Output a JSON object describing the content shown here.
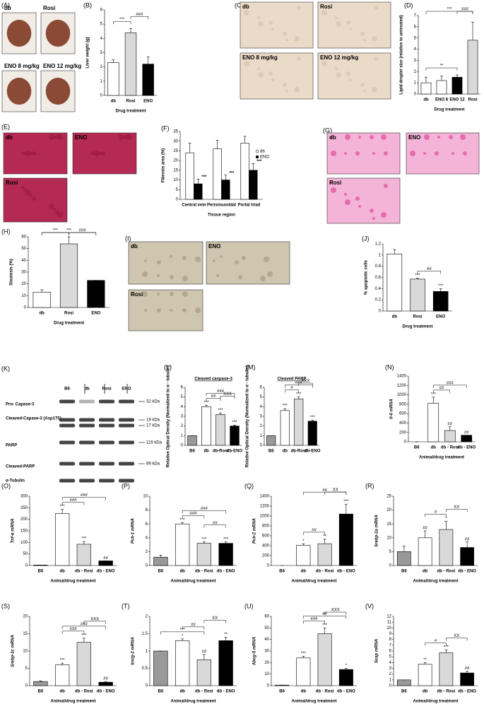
{
  "chart_data": [
    {
      "type": "bar",
      "panel": "(B)",
      "ylabel": "Liver weight (g)",
      "xlabel": "Drug treatment",
      "categories": [
        "db",
        "Rosi",
        "ENO"
      ],
      "colors": [
        "#ffffff",
        "#d9d9d9",
        "#000000"
      ],
      "values": [
        2.3,
        4.4,
        2.2
      ],
      "errors": [
        0.2,
        0.3,
        0.5
      ],
      "brackets": [
        "***",
        "###"
      ],
      "ylim": [
        0,
        6
      ],
      "yticks": [
        0,
        1,
        2,
        3,
        4,
        5,
        6
      ]
    },
    {
      "type": "bar",
      "panel": "(D)",
      "ylabel": "Lipid droplet size (relative to untreated)",
      "xlabel": "Drug treatment",
      "categories": [
        "db",
        "ENO 8",
        "ENO 12",
        "Rosi"
      ],
      "colors": [
        "#ffffff",
        "#ffffff",
        "#000000",
        "#d9d9d9"
      ],
      "values": [
        1,
        1.2,
        1.5,
        4.8
      ],
      "errors": [
        0.5,
        0.4,
        0.2,
        1.6
      ],
      "brackets": [
        "**",
        "***",
        "###"
      ],
      "ylim": [
        0,
        7
      ],
      "yticks": [
        0,
        1,
        2,
        3,
        4,
        5,
        6,
        7
      ]
    },
    {
      "type": "grouped_bar",
      "panel": "(F)",
      "ylabel": "Fibrosis area (%)",
      "xlabel": "Tissue region",
      "categories": [
        "Central vein",
        "Perisinusoidal",
        "Portal triad"
      ],
      "series": [
        {
          "name": "db",
          "color": "#ffffff",
          "values": [
            24,
            26,
            29
          ],
          "errors": [
            5,
            4.5,
            3.5
          ]
        },
        {
          "name": "ENO",
          "color": "#000000",
          "values": [
            8,
            10,
            15
          ],
          "errors": [
            2.5,
            2.5,
            3.5
          ],
          "marks": [
            "***",
            "***",
            "***"
          ]
        }
      ],
      "ylim": [
        0,
        35
      ],
      "yticks": [
        0,
        5,
        10,
        15,
        20,
        25,
        30,
        35
      ],
      "legend": "upper right"
    },
    {
      "type": "bar",
      "panel": "(H)",
      "ylabel": "Steatosis (%)",
      "xlabel": "Drug treatment",
      "categories": [
        "db",
        "Rosi",
        "ENO"
      ],
      "colors": [
        "#ffffff",
        "#d9d9d9",
        "#000000"
      ],
      "values": [
        13,
        54,
        23
      ],
      "errors": [
        2,
        6,
        0
      ],
      "brackets": [
        "***",
        "***",
        "###"
      ],
      "ylim": [
        0,
        60
      ],
      "yticks": [
        0,
        10,
        20,
        30,
        40,
        50,
        60
      ]
    },
    {
      "type": "bar",
      "panel": "(J)",
      "ylabel": "% apoptotic cells",
      "xlabel": "Drug treatment",
      "categories": [
        "db",
        "Rosi",
        "ENO"
      ],
      "colors": [
        "#ffffff",
        "#d9d9d9",
        "#000000"
      ],
      "values": [
        1.02,
        0.57,
        0.35
      ],
      "errors": [
        0.08,
        0.02,
        0.05
      ],
      "bar_marks": [
        null,
        "***",
        "***"
      ],
      "brackets": [
        "##"
      ],
      "ylim": [
        0,
        1.2
      ],
      "yticks": [
        0,
        0.2,
        0.4,
        0.6,
        0.8,
        1,
        1.2
      ]
    },
    {
      "type": "bar",
      "panel": "(L)",
      "title": "Cleaved caspase-3",
      "ylabel": "Relative Optical Density (Normalized to α - tubulin)",
      "categories": [
        "B6",
        "db",
        "db-Rosi",
        "db-ENO"
      ],
      "colors": [
        "#999999",
        "#ffffff",
        "#d9d9d9",
        "#000000"
      ],
      "values": [
        1,
        4,
        3.2,
        2
      ],
      "errors": [
        0,
        0.15,
        0.15,
        0.1
      ],
      "bar_marks": [
        null,
        "***",
        "***",
        "***"
      ],
      "brackets": [
        "##",
        "###",
        "XXX"
      ],
      "ylim": [
        0,
        6
      ],
      "yticks": [
        0,
        1,
        2,
        3,
        4,
        5,
        6
      ]
    },
    {
      "type": "bar",
      "panel": "(M)",
      "title": "Cleaved PARP",
      "ylabel": "Relative Optical Density (Normalized to α - tubulin)",
      "categories": [
        "B6",
        "db",
        "db-Rosi",
        "db-ENO"
      ],
      "colors": [
        "#999999",
        "#ffffff",
        "#d9d9d9",
        "#000000"
      ],
      "values": [
        1,
        3.6,
        4.8,
        2.5
      ],
      "errors": [
        0,
        0.2,
        0.2,
        0.1
      ],
      "bar_marks": [
        null,
        "***",
        "***",
        "***"
      ],
      "brackets": [
        "#",
        "###",
        "XXX"
      ],
      "ylim": [
        0,
        6
      ],
      "yticks": [
        0,
        1,
        2,
        3,
        4,
        5,
        6
      ]
    },
    {
      "type": "bar",
      "panel": "(N)",
      "ylabel": "Il-6 mRNA",
      "xlabel": "Animal/drug treatment",
      "categories": [
        "B6",
        "db",
        "db - Rosi",
        "db - ENO"
      ],
      "colors": [
        "#999999",
        "#ffffff",
        "#d9d9d9",
        "#000000"
      ],
      "values": [
        0,
        820,
        240,
        140
      ],
      "errors": [
        0,
        130,
        80,
        0
      ],
      "bar_marks": [
        null,
        "***",
        "##",
        "##"
      ],
      "brackets": [
        "##",
        "###"
      ],
      "ylim": [
        0,
        1400
      ],
      "yticks": [
        0,
        200,
        400,
        600,
        800,
        1000,
        1200,
        1400
      ]
    },
    {
      "type": "bar",
      "panel": "(O)",
      "ylabel": "Tnf-α mRNA",
      "xlabel": "Animal/drug treatment",
      "categories": [
        "B6",
        "db",
        "db - Rosi",
        "db - ENO"
      ],
      "colors": [
        "#999999",
        "#ffffff",
        "#d9d9d9",
        "#000000"
      ],
      "values": [
        2,
        225,
        92,
        20
      ],
      "errors": [
        0,
        18,
        12,
        0
      ],
      "bar_marks": [
        null,
        "***",
        "***",
        "##"
      ],
      "brackets": [
        "###",
        "###"
      ],
      "ylim": [
        0,
        300
      ],
      "yticks": [
        0,
        50,
        100,
        150,
        200,
        250,
        300
      ]
    },
    {
      "type": "bar",
      "panel": "(P)",
      "ylabel": "Pck-1 mRNA",
      "xlabel": "Animal/drug treatment",
      "categories": [
        "B6",
        "db",
        "db - Rosi",
        "db - ENO"
      ],
      "colors": [
        "#999999",
        "#ffffff",
        "#d9d9d9",
        "#000000"
      ],
      "values": [
        1.2,
        6,
        3.2,
        3.2
      ],
      "errors": [
        0.3,
        0.2,
        0.2,
        0.2
      ],
      "bar_marks": [
        null,
        "***",
        "***",
        "***"
      ],
      "brackets": [
        "###",
        "###",
        "##"
      ],
      "ylim": [
        0,
        10
      ],
      "yticks": [
        0,
        2,
        4,
        6,
        8,
        10
      ]
    },
    {
      "type": "bar",
      "panel": "(Q)",
      "ylabel": "Pck-2 mRNA",
      "xlabel": "Animal/drug treatment",
      "categories": [
        "B6",
        "db",
        "db - Rosi",
        "db - ENO"
      ],
      "colors": [
        "#999999",
        "#ffffff",
        "#d9d9d9",
        "#000000"
      ],
      "values": [
        0,
        410,
        440,
        1040
      ],
      "errors": [
        0,
        30,
        90,
        200
      ],
      "bar_marks": [
        null,
        "*",
        "**",
        "***"
      ],
      "brackets": [
        "##",
        "##",
        "XX"
      ],
      "ylim": [
        0,
        1400
      ],
      "yticks": [
        0,
        200,
        400,
        600,
        800,
        1000,
        1200,
        1400
      ]
    },
    {
      "type": "bar",
      "panel": "(R)",
      "ylabel": "Srebp-1a mRNA",
      "xlabel": "Animal/drug treatment",
      "categories": [
        "B6",
        "db",
        "db - Rosi",
        "db - ENO"
      ],
      "colors": [
        "#999999",
        "#ffffff",
        "#d9d9d9",
        "#000000"
      ],
      "values": [
        5,
        10,
        13,
        6.5
      ],
      "errors": [
        2,
        2.5,
        3,
        2
      ],
      "bar_marks": [
        null,
        "##",
        "*",
        "##"
      ],
      "brackets": [
        "#",
        "XX"
      ],
      "ylim": [
        0,
        25
      ],
      "yticks": [
        0,
        5,
        10,
        15,
        20,
        25
      ]
    },
    {
      "type": "bar",
      "panel": "(S)",
      "ylabel": "Srebp-1c mRNA",
      "xlabel": "Animal/drug treatment",
      "categories": [
        "B6",
        "db",
        "db - Rosi",
        "db - ENO"
      ],
      "colors": [
        "#999999",
        "#ffffff",
        "#d9d9d9",
        "#000000"
      ],
      "values": [
        1.2,
        6,
        12.5,
        1
      ],
      "errors": [
        0.2,
        0.5,
        1.2,
        0.2
      ],
      "bar_marks": [
        null,
        "***",
        "***",
        "##"
      ],
      "brackets": [
        "###",
        "###",
        "XXX"
      ],
      "ylim": [
        0,
        20
      ],
      "yticks": [
        0,
        5,
        10,
        15,
        20
      ]
    },
    {
      "type": "bar",
      "panel": "(T)",
      "ylabel": "Insig-2 mRNA",
      "xlabel": "Animal/drug treatment",
      "categories": [
        "B6",
        "db",
        "db - Rosi",
        "db - ENO"
      ],
      "colors": [
        "#999999",
        "#ffffff",
        "#d9d9d9",
        "#000000"
      ],
      "values": [
        1,
        1.3,
        0.75,
        1.3
      ],
      "errors": [
        0,
        0.05,
        0.15,
        0.1
      ],
      "bar_marks": [
        null,
        "*",
        "##",
        "**"
      ],
      "brackets": [
        "***",
        "##",
        "XX"
      ],
      "ylim": [
        0,
        2
      ],
      "yticks": [
        0,
        0.5,
        1,
        1.5,
        2
      ]
    },
    {
      "type": "bar",
      "panel": "(U)",
      "ylabel": "Abcg-5 mRNA",
      "xlabel": "Animal/drug treatment",
      "categories": [
        "B6",
        "db",
        "db - Rosi",
        "db - ENO"
      ],
      "colors": [
        "#999999",
        "#ffffff",
        "#d9d9d9",
        "#000000"
      ],
      "values": [
        0.5,
        24,
        45,
        14
      ],
      "errors": [
        0,
        1.5,
        5,
        1
      ],
      "bar_marks": [
        null,
        "***",
        "***",
        "*"
      ],
      "brackets": [
        "###",
        "##",
        "XXX"
      ],
      "ylim": [
        0,
        60
      ],
      "yticks": [
        0,
        10,
        20,
        30,
        40,
        50,
        60
      ]
    },
    {
      "type": "bar",
      "panel": "(V)",
      "ylabel": "Scap mRNA",
      "xlabel": "Animal/drug treatment",
      "categories": [
        "B6",
        "db",
        "db - Rosi",
        "db - ENO"
      ],
      "colors": [
        "#999999",
        "#ffffff",
        "#d9d9d9",
        "#000000"
      ],
      "values": [
        1,
        3.7,
        5.7,
        2.2
      ],
      "errors": [
        0,
        0.3,
        0.5,
        0.3
      ],
      "bar_marks": [
        null,
        "**",
        "***",
        "##"
      ],
      "brackets": [
        "#",
        "XX"
      ],
      "ylim": [
        0,
        12
      ],
      "yticks": [
        0,
        1,
        2,
        3,
        4,
        5,
        6,
        7,
        8,
        9,
        10,
        11,
        12
      ]
    }
  ],
  "images": [
    {
      "panel": "(A)",
      "labels": [
        "db",
        "Rosi",
        "ENO 8 mg/kg",
        "ENO 12 mg/kg"
      ]
    },
    {
      "panel": "(C)",
      "labels": [
        "db",
        "Rosi",
        "ENO 8 mg/kg",
        "ENO 12 mg/kg"
      ]
    },
    {
      "panel": "(E)",
      "labels": [
        "db",
        "ENO",
        "Rosi"
      ]
    },
    {
      "panel": "(G)",
      "labels": [
        "db",
        "ENO",
        "Rosi"
      ]
    },
    {
      "panel": "(I)",
      "labels": [
        "db",
        "ENO",
        "Rosi"
      ]
    }
  ],
  "blot": {
    "panel": "(K)",
    "lanes": [
      "B6",
      "db",
      "Rosi",
      "ENO"
    ],
    "bands": [
      {
        "name": "Pro- Capase-3",
        "sizes": [
          "32 kDa"
        ]
      },
      {
        "name": "Cleaved-Capase-3 (Asp175)",
        "sizes": [
          "19 kDa",
          "17 kDa"
        ]
      },
      {
        "name": "PARP",
        "sizes": [
          "116 kDa"
        ]
      },
      {
        "name": "Cleaved-PARP",
        "sizes": [
          "89 kDa"
        ]
      },
      {
        "name": "α-Tubulin",
        "sizes": []
      }
    ]
  }
}
